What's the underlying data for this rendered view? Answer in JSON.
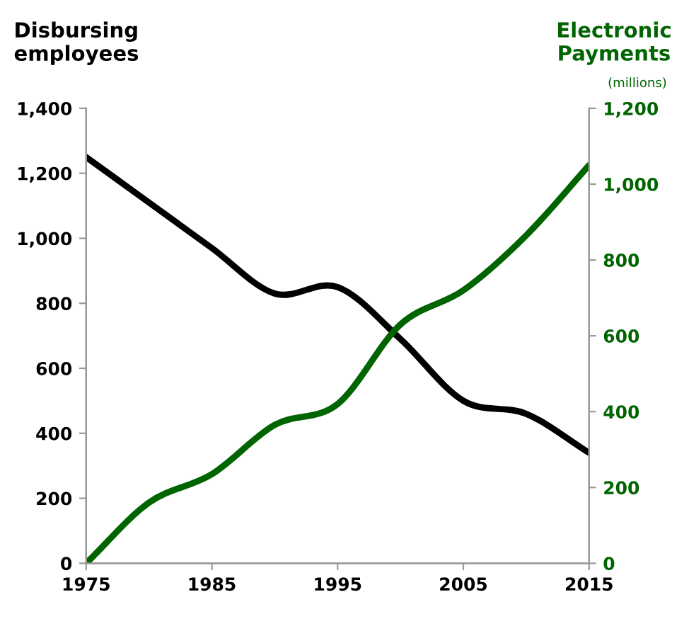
{
  "chart_data": {
    "type": "line",
    "xlabel": null,
    "ylabel": "Disbursing\nemployees",
    "y2label": "Electronic\nPayments",
    "annotations": [
      "(millions)"
    ],
    "x": [
      1975,
      1980,
      1985,
      1990,
      1995,
      2000,
      2005,
      2010,
      2015
    ],
    "series": [
      {
        "color": "#000000",
        "values": [
          1250,
          1110,
          970,
          830,
          850,
          690,
          500,
          460,
          340
        ]
      },
      {
        "color": "#006400",
        "axis": "y2",
        "values": [
          0,
          160,
          235,
          365,
          420,
          630,
          720,
          865,
          1050
        ]
      }
    ],
    "xlim": [
      1975,
      2015
    ],
    "xticks": [
      1975,
      1985,
      1995,
      2005,
      2015
    ],
    "ylim": [
      0,
      1400
    ],
    "yticks": [
      0,
      200,
      400,
      600,
      800,
      {
        "value": 1000,
        "label": "1,000"
      },
      {
        "value": 1200,
        "label": "1,200"
      },
      {
        "value": 1400,
        "label": "1,400"
      }
    ],
    "y2lim": [
      0,
      1200
    ],
    "y2ticks": [
      0,
      200,
      400,
      600,
      800,
      {
        "value": 1000,
        "label": "1,000"
      },
      {
        "value": 1200,
        "label": "1,200"
      }
    ],
    "grid": false,
    "legend": false,
    "marker": "none",
    "line_style": "solid"
  }
}
